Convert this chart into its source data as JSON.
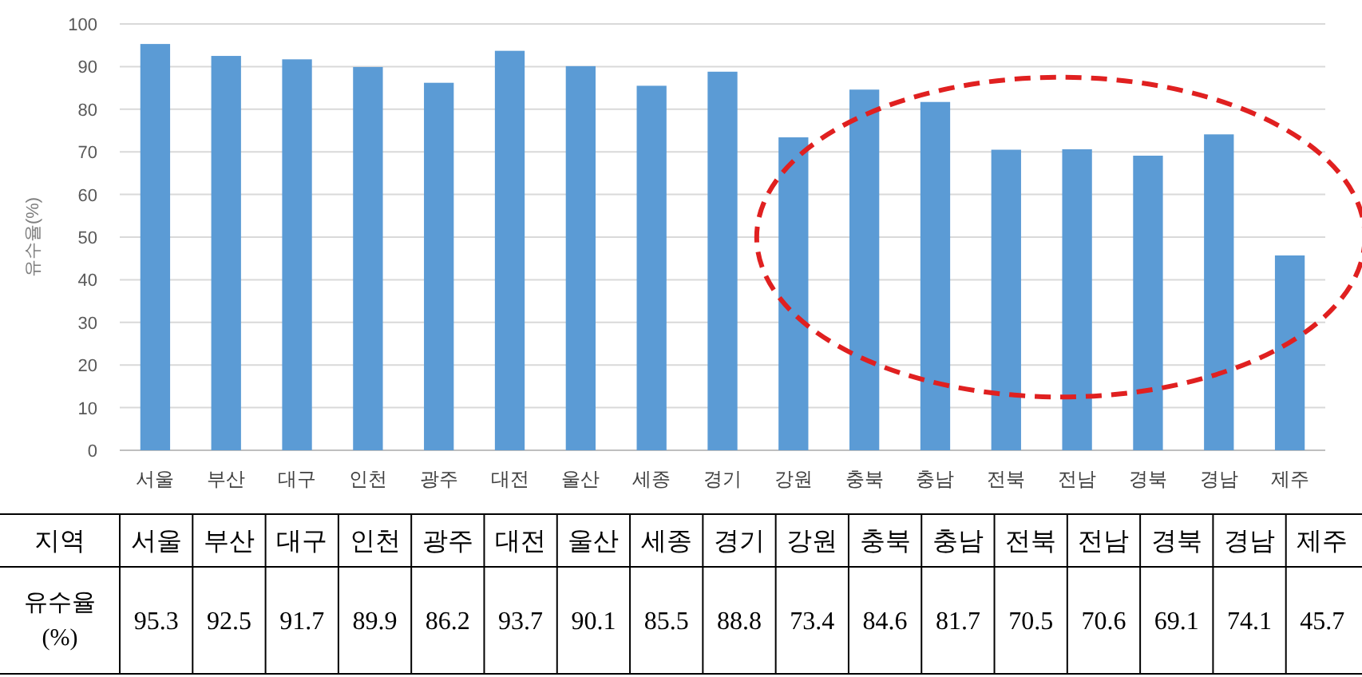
{
  "chart_data": {
    "type": "bar",
    "ylabel": "유수율(%)",
    "categories": [
      "서울",
      "부산",
      "대구",
      "인천",
      "광주",
      "대전",
      "울산",
      "세종",
      "경기",
      "강원",
      "충북",
      "충남",
      "전북",
      "전남",
      "경북",
      "경남",
      "제주"
    ],
    "values": [
      95.3,
      92.5,
      91.7,
      89.9,
      86.2,
      93.7,
      90.1,
      85.5,
      88.8,
      73.4,
      84.6,
      81.7,
      70.5,
      70.6,
      69.1,
      74.1,
      45.7
    ],
    "color": "#5b9bd5",
    "ylim": [
      0,
      100
    ],
    "yticks": [
      0,
      10,
      20,
      30,
      40,
      50,
      60,
      70,
      80,
      90,
      100
    ],
    "grid": "y",
    "data_labels": true,
    "annotations": [
      "지역",
      "유수율 (%)"
    ]
  }
}
